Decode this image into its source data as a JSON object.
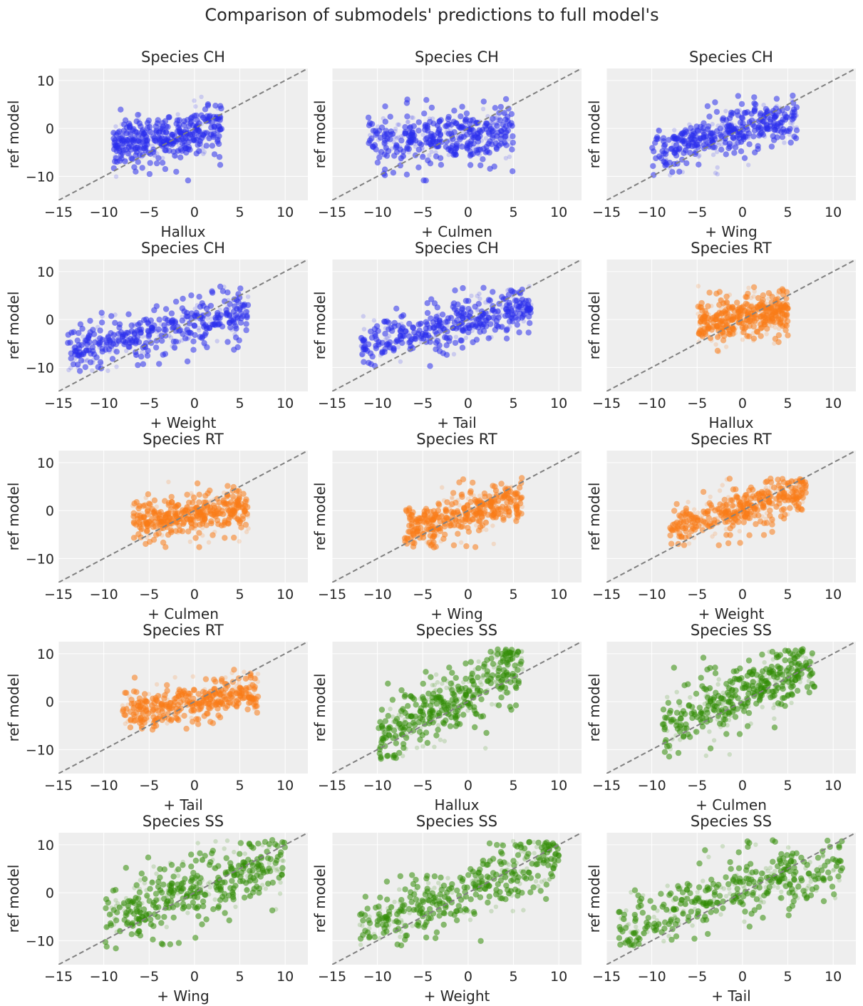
{
  "chart_data": {
    "type": "scatter",
    "title": "Comparison of submodels' predictions to full model's",
    "ylabel": "ref model",
    "xlim": [
      -15,
      12.5
    ],
    "ylim": [
      -15,
      12.5
    ],
    "xticks": [
      "−15",
      "−10",
      "−5",
      "0",
      "5",
      "10"
    ],
    "yticks": [
      "10",
      "0",
      "−10"
    ],
    "reference_line": "y = x (dashed)",
    "colors": {
      "CH": "#2a2eec",
      "RT": "#fa7c17",
      "SS": "#328c06",
      "grid": "#ffffff",
      "panel_bg": "#eeeeee",
      "refline": "#808080"
    },
    "panels": [
      {
        "title": "Species CH",
        "species": "CH",
        "xlabel": "Hallux",
        "cloud": {
          "x_range": [
            -9,
            3
          ],
          "y_range": [
            -11,
            7
          ],
          "center": [
            -4,
            -2
          ],
          "slope": 0.2
        }
      },
      {
        "title": "Species CH",
        "species": "CH",
        "xlabel": "+ Culmen",
        "cloud": {
          "x_range": [
            -11,
            5
          ],
          "y_range": [
            -11,
            7
          ],
          "center": [
            -4,
            -2
          ],
          "slope": 0.1
        }
      },
      {
        "title": "Species CH",
        "species": "CH",
        "xlabel": "+ Wing",
        "cloud": {
          "x_range": [
            -10,
            6
          ],
          "y_range": [
            -10,
            7
          ],
          "center": [
            -4,
            -2
          ],
          "slope": 0.45
        }
      },
      {
        "title": "Species CH",
        "species": "CH",
        "xlabel": "+ Weight",
        "cloud": {
          "x_range": [
            -14,
            6
          ],
          "y_range": [
            -11,
            7
          ],
          "center": [
            -5,
            -3
          ],
          "slope": 0.45
        }
      },
      {
        "title": "Species CH",
        "species": "CH",
        "xlabel": "+ Tail",
        "cloud": {
          "x_range": [
            -12,
            7
          ],
          "y_range": [
            -10,
            7
          ],
          "center": [
            -4,
            -2
          ],
          "slope": 0.45
        }
      },
      {
        "title": "Species RT",
        "species": "RT",
        "xlabel": "Hallux",
        "cloud": {
          "x_range": [
            -5,
            5
          ],
          "y_range": [
            -8,
            7
          ],
          "center": [
            -1,
            0
          ],
          "slope": 0.3
        }
      },
      {
        "title": "Species RT",
        "species": "RT",
        "xlabel": "+ Culmen",
        "cloud": {
          "x_range": [
            -7,
            6
          ],
          "y_range": [
            -8,
            7
          ],
          "center": [
            -1,
            -1
          ],
          "slope": 0.2
        }
      },
      {
        "title": "Species RT",
        "species": "RT",
        "xlabel": "+ Wing",
        "cloud": {
          "x_range": [
            -7,
            6
          ],
          "y_range": [
            -8,
            7
          ],
          "center": [
            -1,
            -1
          ],
          "slope": 0.5
        }
      },
      {
        "title": "Species RT",
        "species": "RT",
        "xlabel": "+ Weight",
        "cloud": {
          "x_range": [
            -8,
            7
          ],
          "y_range": [
            -8,
            7
          ],
          "center": [
            -1,
            0
          ],
          "slope": 0.5
        }
      },
      {
        "title": "Species RT",
        "species": "RT",
        "xlabel": "+ Tail",
        "cloud": {
          "x_range": [
            -8,
            7
          ],
          "y_range": [
            -6,
            7
          ],
          "center": [
            0,
            0
          ],
          "slope": 0.3
        }
      },
      {
        "title": "Species SS",
        "species": "SS",
        "xlabel": "Hallux",
        "cloud": {
          "x_range": [
            -10,
            6
          ],
          "y_range": [
            -12,
            11
          ],
          "center": [
            -3,
            -1
          ],
          "slope": 1.0
        }
      },
      {
        "title": "Species SS",
        "species": "SS",
        "xlabel": "+ Culmen",
        "cloud": {
          "x_range": [
            -9,
            8
          ],
          "y_range": [
            -12,
            11
          ],
          "center": [
            -3,
            -1
          ],
          "slope": 0.8
        }
      },
      {
        "title": "Species SS",
        "species": "SS",
        "xlabel": "+ Wing",
        "cloud": {
          "x_range": [
            -10,
            10
          ],
          "y_range": [
            -12,
            11
          ],
          "center": [
            -3,
            -1
          ],
          "slope": 0.6
        }
      },
      {
        "title": "Species SS",
        "species": "SS",
        "xlabel": "+ Weight",
        "cloud": {
          "x_range": [
            -12,
            10
          ],
          "y_range": [
            -11,
            11
          ],
          "center": [
            -4,
            -2
          ],
          "slope": 0.7
        }
      },
      {
        "title": "Species SS",
        "species": "SS",
        "xlabel": "+ Tail",
        "cloud": {
          "x_range": [
            -14,
            11
          ],
          "y_range": [
            -11,
            11
          ],
          "center": [
            -3,
            -1
          ],
          "slope": 0.55
        }
      }
    ]
  }
}
